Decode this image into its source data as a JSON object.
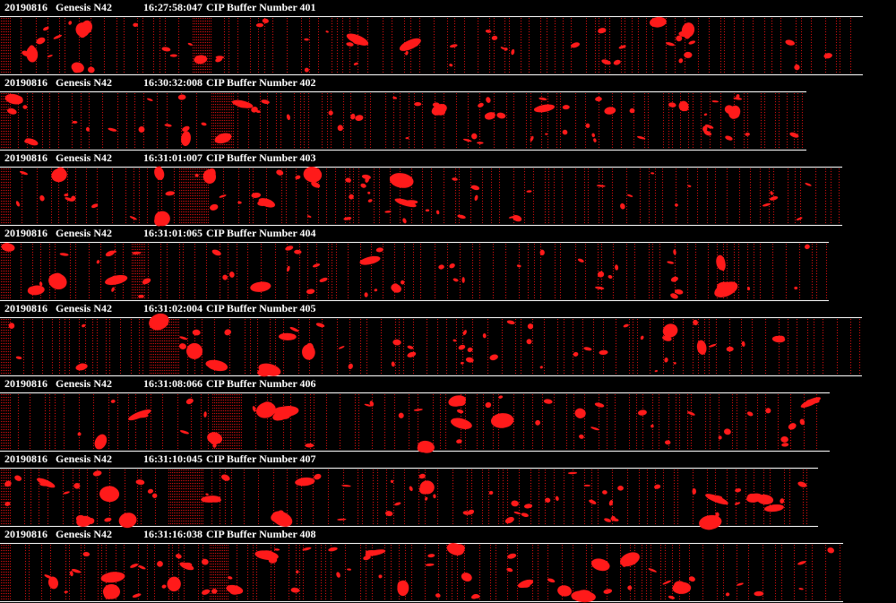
{
  "strips": [
    {
      "date": "20190816",
      "probe": "Genesis N42",
      "time": "16:27:58:047",
      "buffer": "CIP Buffer Number 401"
    },
    {
      "date": "20190816",
      "probe": "Genesis N42",
      "time": "16:30:32:008",
      "buffer": "CIP Buffer Number 402"
    },
    {
      "date": "20190816",
      "probe": "Genesis N42",
      "time": "16:31:01:007",
      "buffer": "CIP Buffer Number 403"
    },
    {
      "date": "20190816",
      "probe": "Genesis N42",
      "time": "16:31:01:065",
      "buffer": "CIP Buffer Number 404"
    },
    {
      "date": "20190816",
      "probe": "Genesis N42",
      "time": "16:31:02:004",
      "buffer": "CIP Buffer Number 405"
    },
    {
      "date": "20190816",
      "probe": "Genesis N42",
      "time": "16:31:08:066",
      "buffer": "CIP Buffer Number 406"
    },
    {
      "date": "20190816",
      "probe": "Genesis N42",
      "time": "16:31:10:045",
      "buffer": "CIP Buffer Number 407"
    },
    {
      "date": "20190816",
      "probe": "Genesis N42",
      "time": "16:31:16:038",
      "buffer": "CIP Buffer Number 408"
    }
  ]
}
